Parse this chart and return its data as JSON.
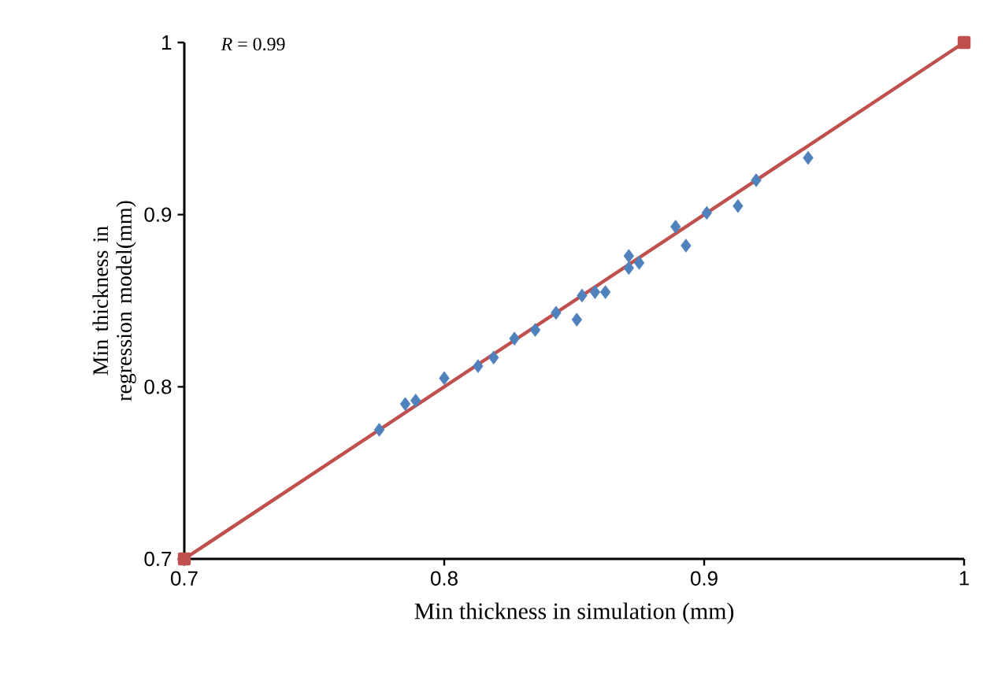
{
  "chart_data": {
    "type": "scatter",
    "xlabel": "Min thickness in simulation (mm)",
    "ylabel": "Min thickness in regression model(mm)",
    "annotations": [
      "*R* = 0.99"
    ],
    "xlim": [
      0.7,
      1
    ],
    "ylim": [
      0.7,
      1
    ],
    "xticks": [
      0.7,
      0.8,
      0.9,
      1
    ],
    "yticks": [
      0.7,
      0.8,
      0.9,
      1
    ],
    "grid": false,
    "series": [
      {
        "type": "line",
        "color": "#c0504d",
        "marker": "square",
        "x": [
          0.7,
          1
        ],
        "values": [
          0.7,
          1
        ]
      },
      {
        "color": "#4f81bd",
        "marker": "diamond",
        "x": [
          0.775,
          0.785,
          0.789,
          0.8,
          0.813,
          0.819,
          0.827,
          0.835,
          0.843,
          0.851,
          0.853,
          0.858,
          0.862,
          0.871,
          0.871,
          0.875,
          0.889,
          0.893,
          0.901,
          0.913,
          0.92,
          0.94
        ],
        "values": [
          0.775,
          0.79,
          0.792,
          0.805,
          0.812,
          0.817,
          0.828,
          0.833,
          0.843,
          0.839,
          0.853,
          0.855,
          0.855,
          0.876,
          0.869,
          0.872,
          0.893,
          0.882,
          0.901,
          0.905,
          0.92,
          0.933
        ]
      }
    ]
  }
}
